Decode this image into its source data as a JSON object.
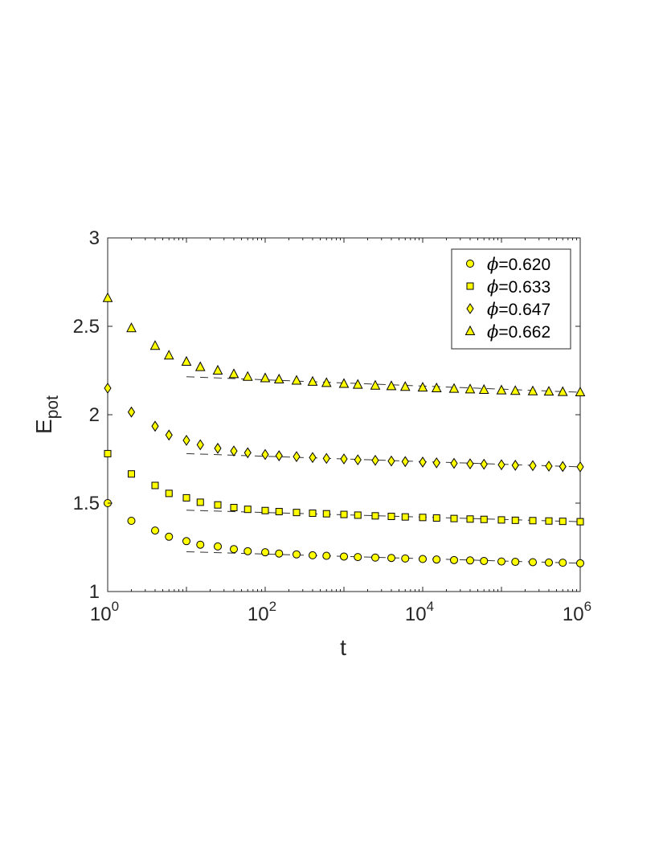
{
  "chart_data": {
    "type": "scatter",
    "xscale": "log",
    "xlim": [
      1,
      1000000
    ],
    "ylim": [
      1,
      3
    ],
    "xlabel": "t",
    "ylabel": "E",
    "ylabel_sub": "pot",
    "grid": false,
    "legend_position": "top-right",
    "x_ticks": [
      {
        "base": "10",
        "exp": "0",
        "value": 1
      },
      {
        "base": "10",
        "exp": "2",
        "value": 100
      },
      {
        "base": "10",
        "exp": "4",
        "value": 10000
      },
      {
        "base": "10",
        "exp": "6",
        "value": 1000000
      }
    ],
    "y_ticks": [
      "1",
      "1.5",
      "2",
      "2.5",
      "3"
    ],
    "marker_fill": "#ffff00",
    "marker_edge": "#000000",
    "fit_line_color": "#333333",
    "x": [
      1,
      2,
      4,
      6,
      10,
      15,
      25,
      40,
      60,
      100,
      150,
      250,
      400,
      600,
      1000,
      1500,
      2500,
      4000,
      6000,
      10000,
      15000,
      25000,
      40000,
      60000,
      100000,
      150000,
      250000,
      400000,
      600000,
      1000000
    ],
    "series": [
      {
        "name": "ϕ=0.620",
        "marker": "circle",
        "values": [
          1.5,
          1.4,
          1.345,
          1.31,
          1.285,
          1.265,
          1.255,
          1.24,
          1.228,
          1.222,
          1.215,
          1.21,
          1.205,
          1.202,
          1.198,
          1.195,
          1.192,
          1.19,
          1.187,
          1.184,
          1.181,
          1.178,
          1.176,
          1.173,
          1.17,
          1.168,
          1.166,
          1.164,
          1.163,
          1.16
        ]
      },
      {
        "name": "ϕ=0.633",
        "marker": "square",
        "values": [
          1.78,
          1.665,
          1.6,
          1.555,
          1.53,
          1.505,
          1.49,
          1.475,
          1.465,
          1.458,
          1.452,
          1.447,
          1.443,
          1.44,
          1.436,
          1.432,
          1.428,
          1.425,
          1.422,
          1.419,
          1.416,
          1.413,
          1.41,
          1.408,
          1.405,
          1.403,
          1.401,
          1.399,
          1.397,
          1.395
        ]
      },
      {
        "name": "ϕ=0.647",
        "marker": "diamond",
        "values": [
          2.15,
          2.015,
          1.935,
          1.885,
          1.855,
          1.83,
          1.81,
          1.795,
          1.785,
          1.775,
          1.768,
          1.763,
          1.758,
          1.753,
          1.75,
          1.745,
          1.742,
          1.738,
          1.735,
          1.732,
          1.728,
          1.725,
          1.722,
          1.72,
          1.717,
          1.714,
          1.712,
          1.709,
          1.707,
          1.705
        ]
      },
      {
        "name": "ϕ=0.662",
        "marker": "triangle",
        "values": [
          2.66,
          2.49,
          2.39,
          2.335,
          2.3,
          2.27,
          2.25,
          2.23,
          2.215,
          2.207,
          2.2,
          2.193,
          2.187,
          2.18,
          2.175,
          2.17,
          2.165,
          2.162,
          2.158,
          2.154,
          2.15,
          2.147,
          2.144,
          2.141,
          2.138,
          2.135,
          2.133,
          2.131,
          2.129,
          2.127
        ]
      }
    ],
    "fits": [
      {
        "series": "ϕ=0.620",
        "x_start": 10,
        "y_start": 1.225,
        "x_end": 1000000,
        "y_end": 1.16
      },
      {
        "series": "ϕ=0.633",
        "x_start": 10,
        "y_start": 1.46,
        "x_end": 1000000,
        "y_end": 1.395
      },
      {
        "series": "ϕ=0.647",
        "x_start": 10,
        "y_start": 1.78,
        "x_end": 1000000,
        "y_end": 1.705
      },
      {
        "series": "ϕ=0.662",
        "x_start": 10,
        "y_start": 2.215,
        "x_end": 1000000,
        "y_end": 2.127
      }
    ]
  }
}
